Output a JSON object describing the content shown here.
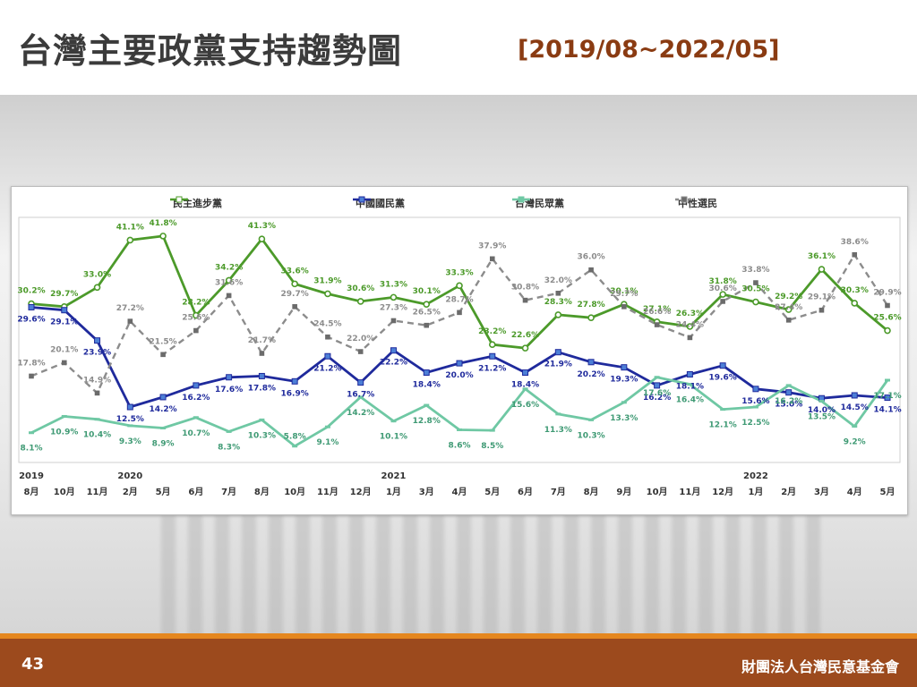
{
  "header": {
    "title": "台灣主要政黨支持趨勢圖",
    "range": "[2019/08~2022/05]"
  },
  "footer": {
    "page_number": "43",
    "organization": "財團法人台灣民意基金會"
  },
  "colors": {
    "dpp": "#4c9a2a",
    "kmt": "#1f2a9c",
    "tpp": "#6fc8a4",
    "neutral": "#8c8c8c",
    "footer_bg": "#9c4a1d",
    "footer_accent": "#e5871f",
    "title_range": "#8a3b12"
  },
  "chart_data": {
    "type": "line",
    "categories": [
      "8月",
      "10月",
      "11月",
      "2月",
      "5月",
      "6月",
      "7月",
      "8月",
      "10月",
      "11月",
      "12月",
      "1月",
      "3月",
      "4月",
      "5月",
      "6月",
      "7月",
      "8月",
      "9月",
      "10月",
      "11月",
      "12月",
      "1月",
      "2月",
      "3月",
      "4月",
      "5月"
    ],
    "year_labels": [
      {
        "index": 0,
        "label": "2019"
      },
      {
        "index": 3,
        "label": "2020"
      },
      {
        "index": 11,
        "label": "2021"
      },
      {
        "index": 22,
        "label": "2022"
      }
    ],
    "series": [
      {
        "name": "民主進步黨",
        "color": "#4c9a2a",
        "marker": "circle",
        "values": [
          30.2,
          29.7,
          33.0,
          41.1,
          41.8,
          28.2,
          34.2,
          41.3,
          33.6,
          31.9,
          30.6,
          31.3,
          30.1,
          33.3,
          23.2,
          22.6,
          28.3,
          27.8,
          30.1,
          27.1,
          26.3,
          31.8,
          30.5,
          29.2,
          36.1,
          30.3,
          25.6
        ]
      },
      {
        "name": "中國國民黨",
        "color": "#1f2a9c",
        "marker": "square",
        "values": [
          29.6,
          29.1,
          23.9,
          12.5,
          14.2,
          16.2,
          17.6,
          17.8,
          16.9,
          21.2,
          16.7,
          22.2,
          18.4,
          20.0,
          21.2,
          18.4,
          21.9,
          20.2,
          19.3,
          16.2,
          18.1,
          19.6,
          15.6,
          15.0,
          14.0,
          14.5,
          14.1
        ]
      },
      {
        "name": "台灣民眾黨",
        "color": "#6fc8a4",
        "marker": "dash",
        "values": [
          8.1,
          10.9,
          10.4,
          9.3,
          8.9,
          10.7,
          8.3,
          10.3,
          5.8,
          9.1,
          14.2,
          10.1,
          12.8,
          8.6,
          8.5,
          15.6,
          11.3,
          10.3,
          13.3,
          17.6,
          16.4,
          12.1,
          12.5,
          16.2,
          13.5,
          9.2,
          17.1
        ]
      },
      {
        "name": "中性選民",
        "color": "#8c8c8c",
        "marker": "x",
        "dashed": true,
        "values": [
          17.8,
          20.1,
          14.9,
          27.2,
          21.5,
          25.6,
          31.6,
          21.7,
          29.7,
          24.5,
          22.0,
          27.3,
          26.5,
          28.7,
          37.9,
          30.8,
          32.0,
          36.0,
          29.7,
          26.6,
          24.4,
          30.6,
          33.8,
          27.4,
          29.1,
          38.6,
          29.9
        ]
      }
    ],
    "ylim": [
      3,
      45
    ],
    "grid": false,
    "legend_position": "top"
  }
}
